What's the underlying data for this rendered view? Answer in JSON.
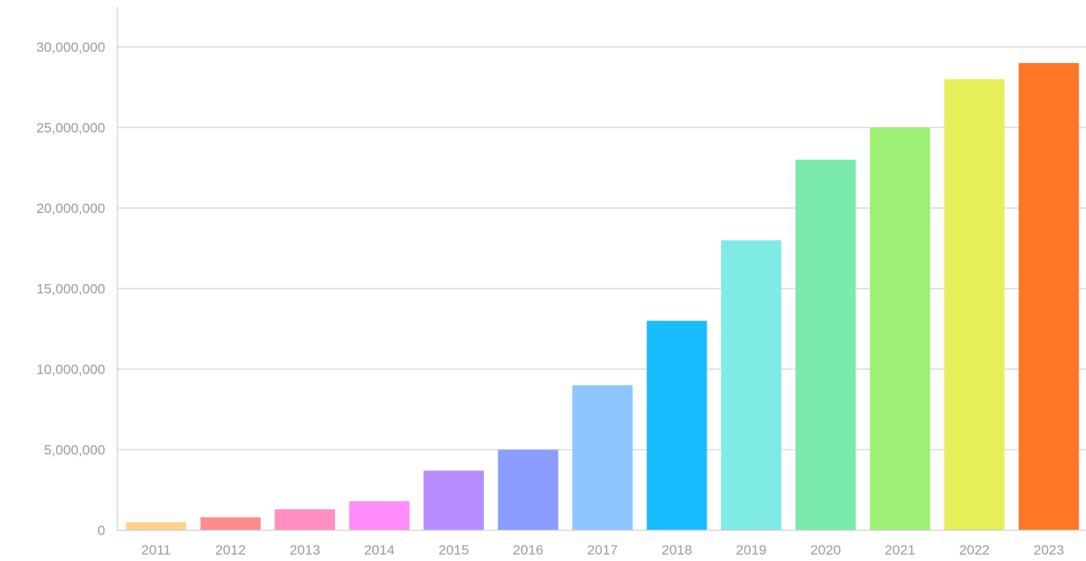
{
  "chart_data": {
    "type": "bar",
    "categories": [
      "2011",
      "2012",
      "2013",
      "2014",
      "2015",
      "2016",
      "2017",
      "2018",
      "2019",
      "2020",
      "2021",
      "2022",
      "2023"
    ],
    "values": [
      500000,
      800000,
      1300000,
      1800000,
      3700000,
      5000000,
      9000000,
      13000000,
      18000000,
      23000000,
      25000000,
      28000000,
      29000000
    ],
    "colors": [
      "#ffd08f",
      "#ff8c8c",
      "#ff8fc0",
      "#ff8cf8",
      "#b68cff",
      "#8b9cff",
      "#8cc5ff",
      "#19bcff",
      "#7eece4",
      "#7aebaa",
      "#9eef76",
      "#e7ef5a",
      "#ff7626"
    ],
    "y_ticks": [
      0,
      5000000,
      10000000,
      15000000,
      20000000,
      25000000,
      30000000
    ],
    "y_tick_labels": [
      "0",
      "5,000,000",
      "10,000,000",
      "15,000,000",
      "20,000,000",
      "25,000,000",
      "30,000,000"
    ],
    "ylim": [
      0,
      30000000
    ],
    "title": "",
    "xlabel": "",
    "ylabel": "",
    "grid": true,
    "legend": "none"
  }
}
